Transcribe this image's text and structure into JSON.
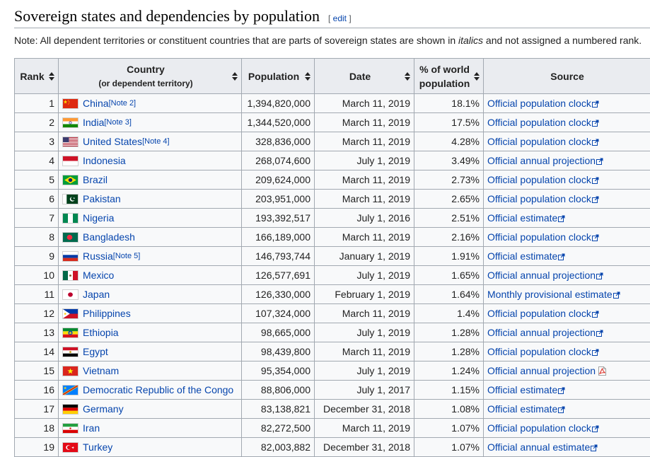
{
  "section": {
    "title": "Sovereign states and dependencies by population",
    "edit_open": "[",
    "edit_label": "edit",
    "edit_close": "]"
  },
  "note": {
    "before": "Note: All dependent territories or constituent countries that are parts of sovereign states are shown in ",
    "italic": "italics",
    "after": " and not assigned a numbered rank."
  },
  "table": {
    "headers": {
      "rank": "Rank",
      "country": "Country",
      "country_sub": "(or dependent territory)",
      "population": "Population",
      "date": "Date",
      "percent_line1": "% of world",
      "percent_line2": "population",
      "source": "Source"
    },
    "rows": [
      {
        "rank": "1",
        "country": "China",
        "note": "[Note 2]",
        "flag": "china",
        "population": "1,394,820,000",
        "date": "March 11, 2019",
        "percent": "18.1%",
        "source": "Official population clock",
        "source_icon": "external-link-icon"
      },
      {
        "rank": "2",
        "country": "India",
        "note": "[Note 3]",
        "flag": "india",
        "population": "1,344,520,000",
        "date": "March 11, 2019",
        "percent": "17.5%",
        "source": "Official population clock",
        "source_icon": "external-link-icon"
      },
      {
        "rank": "3",
        "country": "United States",
        "note": "[Note 4]",
        "flag": "united-states",
        "population": "328,836,000",
        "date": "March 11, 2019",
        "percent": "4.28%",
        "source": "Official population clock",
        "source_icon": "external-link-icon"
      },
      {
        "rank": "4",
        "country": "Indonesia",
        "note": "",
        "flag": "indonesia",
        "population": "268,074,600",
        "date": "July 1, 2019",
        "percent": "3.49%",
        "source": "Official annual projection",
        "source_icon": "external-link-icon"
      },
      {
        "rank": "5",
        "country": "Brazil",
        "note": "",
        "flag": "brazil",
        "population": "209,624,000",
        "date": "March 11, 2019",
        "percent": "2.73%",
        "source": "Official population clock",
        "source_icon": "external-link-icon"
      },
      {
        "rank": "6",
        "country": "Pakistan",
        "note": "",
        "flag": "pakistan",
        "population": "203,951,000",
        "date": "March 11, 2019",
        "percent": "2.65%",
        "source": "Official population clock",
        "source_icon": "external-link-icon"
      },
      {
        "rank": "7",
        "country": "Nigeria",
        "note": "",
        "flag": "nigeria",
        "population": "193,392,517",
        "date": "July 1, 2016",
        "percent": "2.51%",
        "source": "Official estimate",
        "source_icon": "external-link-icon"
      },
      {
        "rank": "8",
        "country": "Bangladesh",
        "note": "",
        "flag": "bangladesh",
        "population": "166,189,000",
        "date": "March 11, 2019",
        "percent": "2.16%",
        "source": "Official population clock",
        "source_icon": "external-link-icon"
      },
      {
        "rank": "9",
        "country": "Russia",
        "note": "[Note 5]",
        "flag": "russia",
        "population": "146,793,744",
        "date": "January 1, 2019",
        "percent": "1.91%",
        "source": "Official estimate",
        "source_icon": "external-link-icon"
      },
      {
        "rank": "10",
        "country": "Mexico",
        "note": "",
        "flag": "mexico",
        "population": "126,577,691",
        "date": "July 1, 2019",
        "percent": "1.65%",
        "source": "Official annual projection",
        "source_icon": "external-link-icon"
      },
      {
        "rank": "11",
        "country": "Japan",
        "note": "",
        "flag": "japan",
        "population": "126,330,000",
        "date": "February 1, 2019",
        "percent": "1.64%",
        "source": "Monthly provisional estimate",
        "source_icon": "external-link-icon"
      },
      {
        "rank": "12",
        "country": "Philippines",
        "note": "",
        "flag": "philippines",
        "population": "107,324,000",
        "date": "March 11, 2019",
        "percent": "1.4%",
        "source": "Official population clock",
        "source_icon": "external-link-icon"
      },
      {
        "rank": "13",
        "country": "Ethiopia",
        "note": "",
        "flag": "ethiopia",
        "population": "98,665,000",
        "date": "July 1, 2019",
        "percent": "1.28%",
        "source": "Official annual projection",
        "source_icon": "external-link-icon"
      },
      {
        "rank": "14",
        "country": "Egypt",
        "note": "",
        "flag": "egypt",
        "population": "98,439,800",
        "date": "March 11, 2019",
        "percent": "1.28%",
        "source": "Official population clock",
        "source_icon": "external-link-icon"
      },
      {
        "rank": "15",
        "country": "Vietnam",
        "note": "",
        "flag": "vietnam",
        "population": "95,354,000",
        "date": "July 1, 2019",
        "percent": "1.24%",
        "source": "Official annual projection",
        "source_icon": "pdf-icon"
      },
      {
        "rank": "16",
        "country": "Democratic Republic of the Congo",
        "note": "",
        "flag": "dr-congo",
        "population": "88,806,000",
        "date": "July 1, 2017",
        "percent": "1.15%",
        "source": "Official estimate",
        "source_icon": "external-link-icon"
      },
      {
        "rank": "17",
        "country": "Germany",
        "note": "",
        "flag": "germany",
        "population": "83,138,821",
        "date": "December 31, 2018",
        "percent": "1.08%",
        "source": "Official estimate",
        "source_icon": "external-link-icon"
      },
      {
        "rank": "18",
        "country": "Iran",
        "note": "",
        "flag": "iran",
        "population": "82,272,500",
        "date": "March 11, 2019",
        "percent": "1.07%",
        "source": "Official population clock",
        "source_icon": "external-link-icon"
      },
      {
        "rank": "19",
        "country": "Turkey",
        "note": "",
        "flag": "turkey",
        "population": "82,003,882",
        "date": "December 31, 2018",
        "percent": "1.07%",
        "source": "Official annual estimate",
        "source_icon": "external-link-icon"
      }
    ]
  },
  "colors": {
    "link": "#0645ad",
    "header_bg": "#eaecf0",
    "cell_bg": "#f8f9fa",
    "border": "#a2a9b1"
  }
}
